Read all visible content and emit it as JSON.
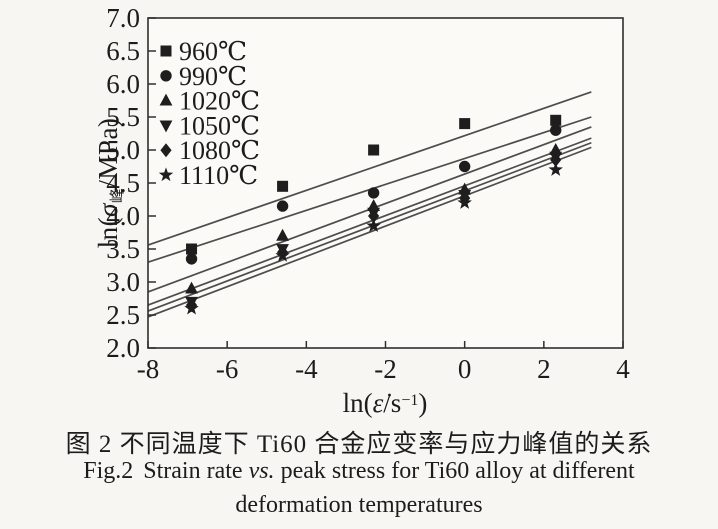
{
  "figure": {
    "caption_zh": "图 2  不同温度下 Ti60 合金应变率与应力峰值的关系",
    "caption_en": {
      "fig": "Fig.2",
      "before": "Strain rate",
      "vs": "vs.",
      "after": "peak stress for Ti60 alloy at different",
      "line2": "deformation temperatures"
    }
  },
  "axes": {
    "x_label": {
      "pre": "ln(",
      "var": "ε̇",
      "mid": "/s",
      "sup": "−1",
      "post": ")"
    },
    "y_label": {
      "pre": "ln(",
      "var": "σ",
      "sub": "峰",
      "mid": "/MPa",
      "post": ")"
    }
  },
  "chart_data": {
    "type": "scatter",
    "title": "",
    "xlabel": "ln(ε̇/s⁻¹)",
    "ylabel": "ln(σ峰/MPa)",
    "xlim": [
      -8,
      4
    ],
    "ylim": [
      2.0,
      7.0
    ],
    "xticks": [
      -8,
      -6,
      -4,
      -2,
      0,
      2,
      4
    ],
    "yticks": [
      2.0,
      2.5,
      3.0,
      3.5,
      4.0,
      4.5,
      5.0,
      5.5,
      6.0,
      6.5,
      7.0
    ],
    "grid": false,
    "legend_position": "top-left",
    "marker_color": "#1e1e1e",
    "line_color": "#4d4d4d",
    "x": [
      -6.9,
      -4.6,
      -2.3,
      0,
      2.3
    ],
    "series": [
      {
        "name": "960℃",
        "marker": "square",
        "values": [
          3.5,
          4.45,
          5.0,
          5.4,
          5.45
        ],
        "fit": {
          "x": [
            -8,
            3.2
          ],
          "y": [
            3.56,
            5.88
          ]
        }
      },
      {
        "name": "990℃",
        "marker": "circle",
        "values": [
          3.35,
          4.15,
          4.35,
          4.75,
          5.3
        ],
        "fit": {
          "x": [
            -8,
            3.2
          ],
          "y": [
            3.3,
            5.5
          ]
        }
      },
      {
        "name": "1020℃",
        "marker": "triangle-up",
        "values": [
          2.9,
          3.7,
          4.15,
          4.4,
          5.0
        ],
        "fit": {
          "x": [
            -8,
            3.2
          ],
          "y": [
            2.85,
            5.35
          ]
        }
      },
      {
        "name": "1050℃",
        "marker": "triangle-down",
        "values": [
          2.7,
          3.5,
          4.05,
          4.32,
          4.9
        ],
        "fit": {
          "x": [
            -8,
            3.2
          ],
          "y": [
            2.65,
            5.18
          ]
        }
      },
      {
        "name": "1080℃",
        "marker": "diamond",
        "values": [
          2.65,
          3.45,
          4.0,
          4.27,
          4.85
        ],
        "fit": {
          "x": [
            -8,
            3.2
          ],
          "y": [
            2.56,
            5.11
          ]
        }
      },
      {
        "name": "1110℃",
        "marker": "star",
        "values": [
          2.6,
          3.4,
          3.85,
          4.2,
          4.7
        ],
        "fit": {
          "x": [
            -8,
            3.2
          ],
          "y": [
            2.47,
            5.04
          ]
        }
      }
    ]
  }
}
